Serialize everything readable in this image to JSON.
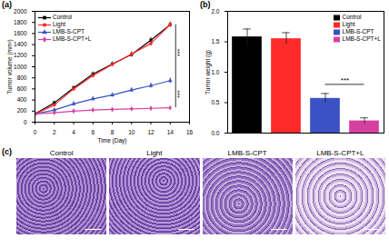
{
  "chart_data": [
    {
      "type": "line",
      "title": "(a)",
      "x_label": "Time (Day)",
      "y_label": "Tumor volume (mm³)",
      "x": [
        0,
        2,
        4,
        6,
        8,
        10,
        12,
        14
      ],
      "series": [
        {
          "name": "Control",
          "color": "#000000",
          "marker": "square",
          "values": [
            150,
            350,
            620,
            870,
            1050,
            1220,
            1480,
            1760
          ],
          "errors": [
            20,
            30,
            35,
            40,
            40,
            45,
            50,
            50
          ]
        },
        {
          "name": "Light",
          "color": "#ff2a2a",
          "marker": "circle",
          "values": [
            150,
            310,
            600,
            840,
            1040,
            1230,
            1420,
            1760
          ],
          "errors": [
            20,
            30,
            35,
            40,
            40,
            45,
            50,
            40
          ]
        },
        {
          "name": "LMB-S-CPT",
          "color": "#3b52c4",
          "marker": "triangle",
          "values": [
            150,
            220,
            330,
            420,
            490,
            580,
            660,
            750
          ],
          "errors": [
            15,
            30,
            40,
            40,
            40,
            40,
            45,
            50
          ]
        },
        {
          "name": "LMB-S-CPT+L",
          "color": "#d6409f",
          "marker": "diamond",
          "values": [
            150,
            170,
            200,
            220,
            230,
            240,
            250,
            260
          ],
          "errors": [
            15,
            15,
            20,
            20,
            20,
            20,
            20,
            20
          ]
        }
      ],
      "xlim": [
        0,
        16
      ],
      "xticks": [
        0,
        2,
        4,
        6,
        8,
        10,
        12,
        14,
        16
      ],
      "ylim": [
        0,
        2000
      ],
      "yticks": [
        0,
        200,
        400,
        600,
        800,
        1000,
        1200,
        1400,
        1600,
        1800,
        2000
      ],
      "legend": "top-left",
      "grid": false,
      "annotations": [
        {
          "text": "***",
          "x": 14,
          "y1": 1760,
          "y2": 750
        },
        {
          "text": "***",
          "x": 14,
          "y1": 750,
          "y2": 260
        }
      ]
    },
    {
      "type": "bar",
      "title": "(b)",
      "y_label": "Tumor weight (g)",
      "categories": [
        "Control",
        "Light",
        "LMB-S-CPT",
        "LMB-S-CPT+L"
      ],
      "values": [
        1.58,
        1.55,
        0.57,
        0.2
      ],
      "errors": [
        0.13,
        0.1,
        0.08,
        0.05
      ],
      "colors": [
        "#000000",
        "#ff2a2a",
        "#3b52c4",
        "#d6409f"
      ],
      "ylim": [
        0,
        2
      ],
      "yticks": [
        {
          "value": 0,
          "label": "0.0"
        },
        {
          "value": 0.5,
          "label": "0.5"
        },
        {
          "value": 1,
          "label": "1.0"
        },
        {
          "value": 1.5,
          "label": "1.5"
        },
        {
          "value": 2,
          "label": "2.0"
        }
      ],
      "legend": "top-right",
      "tick_labels": "y",
      "grid": false,
      "annotations": [
        {
          "text": "***",
          "x1": "LMB-S-CPT",
          "x2": "LMB-S-CPT+L",
          "y": 0.8
        }
      ]
    },
    {
      "type": "image",
      "title": "(c)",
      "categories": [
        "Control",
        "Light",
        "LMB-S-CPT",
        "LMB-S-CPT+L"
      ]
    }
  ]
}
